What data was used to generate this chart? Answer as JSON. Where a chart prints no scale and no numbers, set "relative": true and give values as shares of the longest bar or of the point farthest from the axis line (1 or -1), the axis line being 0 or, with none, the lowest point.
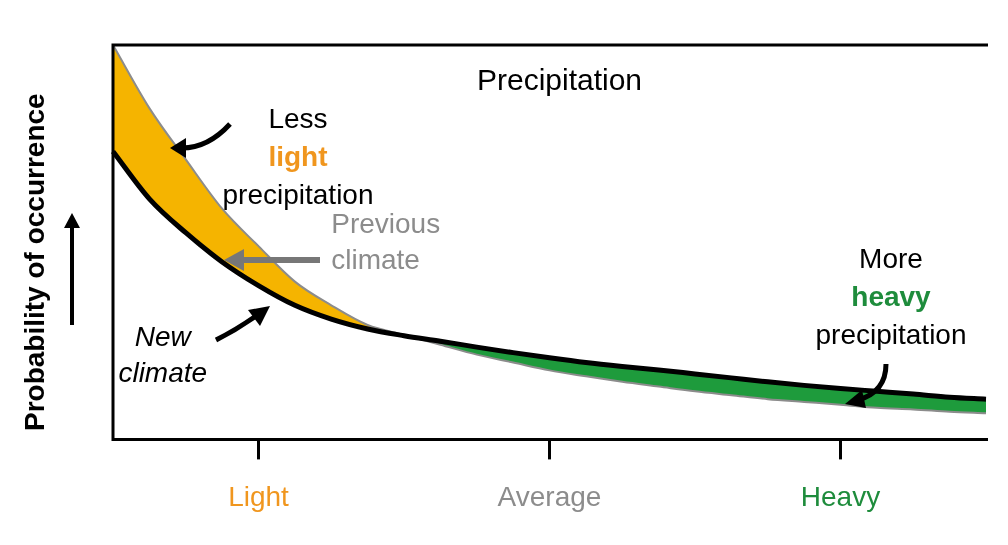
{
  "chart_data": {
    "type": "line",
    "title": "Precipitation",
    "ylabel": "Probability of occurrence",
    "relative": true,
    "categories": [
      null,
      null,
      null,
      null,
      "Light",
      null,
      null,
      null,
      null,
      null,
      null,
      null,
      "Average",
      null,
      null,
      null,
      null,
      null,
      null,
      null,
      "Heavy",
      null,
      null,
      null,
      null
    ],
    "series": [
      {
        "name": "Previous climate",
        "color": "#8c8c8c",
        "values": [
          1.0,
          0.84,
          0.71,
          0.585,
          0.49,
          0.4,
          0.34,
          0.29,
          0.265,
          0.24,
          0.215,
          0.195,
          0.175,
          0.16,
          0.146,
          0.134,
          0.122,
          0.112,
          0.102,
          0.095,
          0.088,
          0.08,
          0.076,
          0.07,
          0.066
        ]
      },
      {
        "name": "New climate",
        "color": "#000000",
        "values": [
          0.73,
          0.61,
          0.524,
          0.45,
          0.39,
          0.34,
          0.305,
          0.28,
          0.263,
          0.249,
          0.234,
          0.22,
          0.207,
          0.195,
          0.185,
          0.176,
          0.166,
          0.156,
          0.146,
          0.137,
          0.129,
          0.122,
          0.115,
          0.107,
          0.102
        ]
      }
    ],
    "annotations": [
      "Less light precipitation",
      "More heavy precipitation"
    ],
    "marker": "none",
    "grid": false,
    "legend": false
  }
}
